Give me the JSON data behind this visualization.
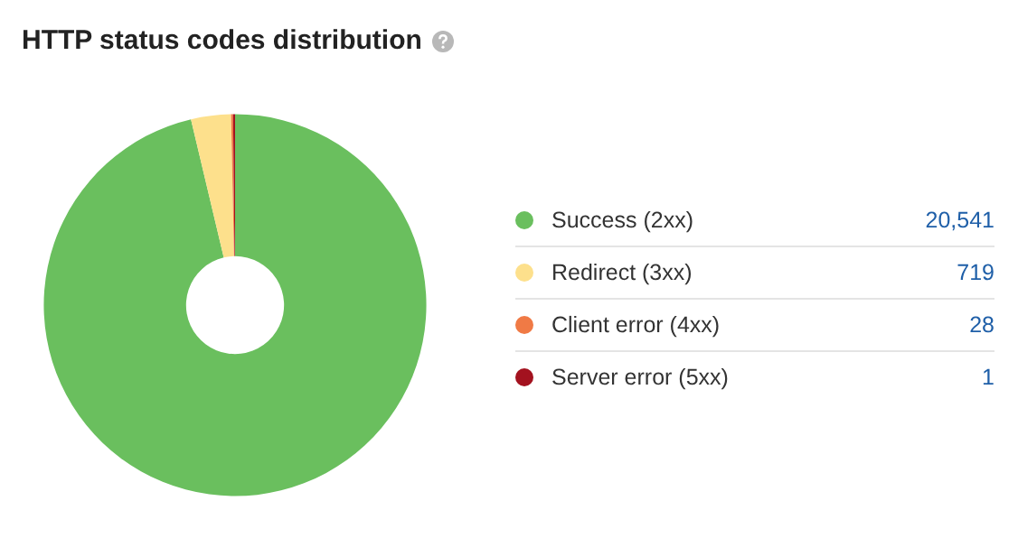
{
  "chart_data": {
    "type": "donut",
    "title": "HTTP status codes distribution",
    "categories": [
      "Success (2xx)",
      "Redirect (3xx)",
      "Client error (4xx)",
      "Server error (5xx)"
    ],
    "values": [
      20541,
      719,
      28,
      1
    ],
    "value_labels": [
      "20,541",
      "719",
      "28",
      "1"
    ],
    "colors": [
      "#6abf5e",
      "#fde08c",
      "#f07a45",
      "#a3121f"
    ],
    "legend": "right"
  }
}
